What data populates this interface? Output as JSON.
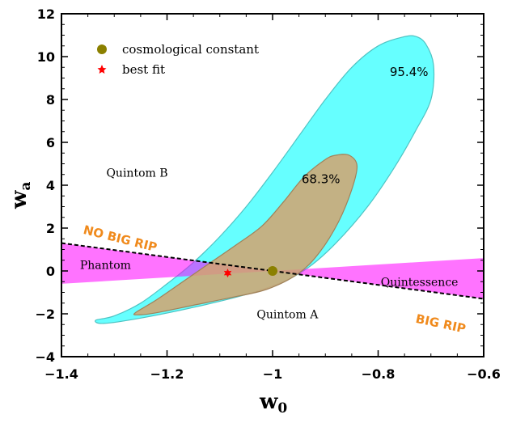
{
  "chart_data": {
    "type": "contour",
    "xlabel_main": "w",
    "xlabel_sub": "0",
    "ylabel_main": "w",
    "ylabel_sub": "a",
    "xlim": [
      -1.4,
      -0.6
    ],
    "ylim": [
      -4,
      12
    ],
    "x_ticks": [
      -1.4,
      -1.2,
      -1.0,
      -0.8,
      -0.6
    ],
    "x_tick_labels": [
      "−1.4",
      "−1.2",
      "−1",
      "−0.8",
      "−0.6"
    ],
    "y_ticks": [
      -4,
      -2,
      0,
      2,
      4,
      6,
      8,
      10,
      12
    ],
    "y_tick_labels": [
      "−4",
      "−2",
      "0",
      "2",
      "4",
      "6",
      "8",
      "10",
      "12"
    ],
    "legend": [
      {
        "label": "cosmological constant",
        "marker": "circle",
        "color": "#8b8000"
      },
      {
        "label": "best fit",
        "marker": "star",
        "color": "#ff0000"
      }
    ],
    "points": {
      "cosmological_constant": {
        "x": -1.0,
        "y": 0.0
      },
      "best_fit": {
        "x": -1.085,
        "y": -0.1
      }
    },
    "contours": [
      {
        "label": "95.4%",
        "fill": "#00ffff",
        "stroke": "#4fc3c3",
        "opacity": 0.6,
        "path": [
          [
            -1.335,
            -2.3
          ],
          [
            -1.3,
            -2.1
          ],
          [
            -1.25,
            -1.5
          ],
          [
            -1.2,
            -0.6
          ],
          [
            -1.15,
            0.4
          ],
          [
            -1.1,
            1.6
          ],
          [
            -1.05,
            3.0
          ],
          [
            -1.0,
            4.6
          ],
          [
            -0.95,
            6.3
          ],
          [
            -0.9,
            8.0
          ],
          [
            -0.85,
            9.5
          ],
          [
            -0.8,
            10.5
          ],
          [
            -0.755,
            10.9
          ],
          [
            -0.73,
            10.95
          ],
          [
            -0.71,
            10.6
          ],
          [
            -0.695,
            9.6
          ],
          [
            -0.7,
            8.0
          ],
          [
            -0.73,
            6.5
          ],
          [
            -0.77,
            4.8
          ],
          [
            -0.82,
            3.0
          ],
          [
            -0.88,
            1.3
          ],
          [
            -0.93,
            0.2
          ],
          [
            -0.98,
            -0.5
          ],
          [
            -1.05,
            -1.1
          ],
          [
            -1.15,
            -1.7
          ],
          [
            -1.25,
            -2.2
          ],
          [
            -1.32,
            -2.45
          ]
        ]
      },
      {
        "label": "68.3%",
        "fill": "#d4a36e",
        "stroke": "#a0825a",
        "opacity": 0.85,
        "path": [
          [
            -1.26,
            -1.95
          ],
          [
            -1.22,
            -1.35
          ],
          [
            -1.17,
            -0.5
          ],
          [
            -1.12,
            0.35
          ],
          [
            -1.07,
            1.2
          ],
          [
            -1.02,
            2.1
          ],
          [
            -0.98,
            3.2
          ],
          [
            -0.94,
            4.4
          ],
          [
            -0.9,
            5.2
          ],
          [
            -0.88,
            5.4
          ],
          [
            -0.855,
            5.4
          ],
          [
            -0.84,
            4.9
          ],
          [
            -0.85,
            3.8
          ],
          [
            -0.875,
            2.3
          ],
          [
            -0.91,
            0.9
          ],
          [
            -0.95,
            -0.1
          ],
          [
            -1.01,
            -0.85
          ],
          [
            -1.08,
            -1.25
          ],
          [
            -1.15,
            -1.6
          ],
          [
            -1.22,
            -1.95
          ],
          [
            -1.255,
            -2.05
          ]
        ]
      }
    ],
    "band": {
      "fill": "#ff00ff",
      "opacity": 0.55,
      "polygon": [
        [
          -1.4,
          1.3
        ],
        [
          -1.0,
          0.0
        ],
        [
          -0.6,
          0.6
        ],
        [
          -0.6,
          -1.3
        ],
        [
          -1.0,
          0.0
        ],
        [
          -1.4,
          -0.6
        ]
      ]
    },
    "dashed_line": {
      "from": [
        -1.4,
        1.3
      ],
      "to": [
        -0.6,
        -1.3
      ]
    },
    "region_labels": [
      {
        "text": "Quintom B",
        "x": -1.315,
        "y": 4.4
      },
      {
        "text": "Phantom",
        "x": -1.365,
        "y": 0.1
      },
      {
        "text": "Quintessence",
        "x": -0.795,
        "y": -0.7
      },
      {
        "text": "Quintom A",
        "x": -1.03,
        "y": -2.2
      }
    ],
    "rip_labels": [
      {
        "text": "NO BIG RIP",
        "x": -1.36,
        "y": 1.75,
        "angle": 14
      },
      {
        "text": "BIG RIP",
        "x": -0.73,
        "y": -2.4,
        "angle": 12
      }
    ],
    "contour_labels": [
      {
        "text": "95.4%",
        "x": -0.778,
        "y": 9.1
      },
      {
        "text": "68.3%",
        "x": -0.945,
        "y": 4.1
      }
    ]
  }
}
